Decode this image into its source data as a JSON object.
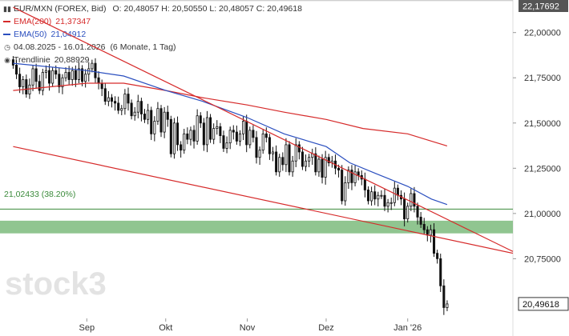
{
  "legend": {
    "title": "EUR/MXN (FOREX, Bid)",
    "ohlc": "O: 20,48057  H: 20,50550  L: 20,48057  C: 20,49618",
    "ema200_label": "EMA(200)",
    "ema200_value": "21,37347",
    "ema50_label": "EMA(50)",
    "ema50_value": "21,04912",
    "range": "04.08.2025 - 16.01.2026",
    "period": "(6 Monate, 1 Tag)",
    "trend_label": "Trendlinie",
    "trend_value": "20,88929"
  },
  "fib_label": "21,02433 (38.20%)",
  "watermark": "stock3",
  "colors": {
    "ema200": "#d62a2a",
    "ema50": "#2b4fbf",
    "trend": "#d62a2a",
    "fib": "#3a8a3a",
    "zone": "#7dbb7d",
    "candle": "#111111"
  },
  "chart_data": {
    "type": "candlestick",
    "y_axis": {
      "ticks": [
        22.0,
        21.75,
        21.5,
        21.25,
        21.0,
        20.75
      ],
      "tick_labels": [
        "22,00000",
        "21,75000",
        "21,50000",
        "21,25000",
        "21,00000",
        "20,75000"
      ],
      "top_tag": "22,17692",
      "last_tag": "20,49618",
      "range": [
        20.42,
        22.18
      ]
    },
    "x_axis": {
      "labels": [
        "Sep",
        "Okt",
        "Nov",
        "Dez",
        "Jan '26"
      ],
      "label_dates": [
        "2025-09-01",
        "2025-10-01",
        "2025-11-01",
        "2025-12-01",
        "2026-01-01"
      ]
    },
    "dates": [
      "2025-08-04",
      "2026-01-16"
    ],
    "closes": [
      21.82,
      21.77,
      21.7,
      21.74,
      21.66,
      21.71,
      21.8,
      21.73,
      21.68,
      21.78,
      21.79,
      21.72,
      21.79,
      21.77,
      21.7,
      21.75,
      21.78,
      21.74,
      21.79,
      21.74,
      21.8,
      21.73,
      21.77,
      21.8,
      21.83,
      21.75,
      21.72,
      21.69,
      21.62,
      21.64,
      21.62,
      21.61,
      21.57,
      21.58,
      21.66,
      21.61,
      21.54,
      21.56,
      21.62,
      21.55,
      21.52,
      21.57,
      21.44,
      21.51,
      21.58,
      21.45,
      21.56,
      21.52,
      21.33,
      21.5,
      21.38,
      21.35,
      21.44,
      21.41,
      21.46,
      21.4,
      21.54,
      21.5,
      21.38,
      21.53,
      21.41,
      21.47,
      21.48,
      21.43,
      21.36,
      21.39,
      21.46,
      21.45,
      21.4,
      21.44,
      21.51,
      21.38,
      21.46,
      21.42,
      21.31,
      21.35,
      21.44,
      21.42,
      21.33,
      21.34,
      21.23,
      21.31,
      21.27,
      21.38,
      21.23,
      21.29,
      21.38,
      21.34,
      21.26,
      21.29,
      21.31,
      21.33,
      21.23,
      21.3,
      21.2,
      21.31,
      21.28,
      21.29,
      21.25,
      21.24,
      21.07,
      21.17,
      21.24,
      21.17,
      21.23,
      21.21,
      21.19,
      21.13,
      21.07,
      21.12,
      21.08,
      21.1,
      21.1,
      21.04,
      21.06,
      21.06,
      21.14,
      21.1,
      21.08,
      20.97,
      21.04,
      21.11,
      21.04,
      20.98,
      20.94,
      20.91,
      20.88,
      20.91,
      20.78,
      20.75,
      20.6,
      20.48,
      20.5
    ],
    "ema50": [
      {
        "date": "2025-08-04",
        "value": 21.83
      },
      {
        "date": "2025-09-01",
        "value": 21.79
      },
      {
        "date": "2025-09-15",
        "value": 21.76
      },
      {
        "date": "2025-10-01",
        "value": 21.68
      },
      {
        "date": "2025-10-15",
        "value": 21.62
      },
      {
        "date": "2025-11-01",
        "value": 21.53
      },
      {
        "date": "2025-11-15",
        "value": 21.44
      },
      {
        "date": "2025-12-01",
        "value": 21.37
      },
      {
        "date": "2025-12-10",
        "value": 21.28
      },
      {
        "date": "2025-12-20",
        "value": 21.22
      },
      {
        "date": "2026-01-01",
        "value": 21.15
      },
      {
        "date": "2026-01-10",
        "value": 21.08
      },
      {
        "date": "2026-01-16",
        "value": 21.04912
      }
    ],
    "ema200": [
      {
        "date": "2025-08-04",
        "value": 21.68
      },
      {
        "date": "2025-09-01",
        "value": 21.72
      },
      {
        "date": "2025-09-15",
        "value": 21.72
      },
      {
        "date": "2025-10-01",
        "value": 21.68
      },
      {
        "date": "2025-10-15",
        "value": 21.64
      },
      {
        "date": "2025-11-01",
        "value": 21.6
      },
      {
        "date": "2025-11-15",
        "value": 21.56
      },
      {
        "date": "2025-12-01",
        "value": 21.52
      },
      {
        "date": "2025-12-15",
        "value": 21.47
      },
      {
        "date": "2026-01-01",
        "value": 21.44
      },
      {
        "date": "2026-01-10",
        "value": 21.4
      },
      {
        "date": "2026-01-16",
        "value": 21.37347
      }
    ],
    "trendlines": [
      {
        "from": {
          "date": "2025-08-04",
          "value": 22.14
        },
        "to": {
          "date": "2026-02-10",
          "value": 20.79
        }
      },
      {
        "from": {
          "date": "2025-08-04",
          "value": 21.37
        },
        "to": {
          "date": "2026-02-10",
          "value": 20.78
        }
      }
    ],
    "fib_level": 21.02433,
    "zone": [
      20.89,
      20.96
    ],
    "top_line": 22.17692
  }
}
